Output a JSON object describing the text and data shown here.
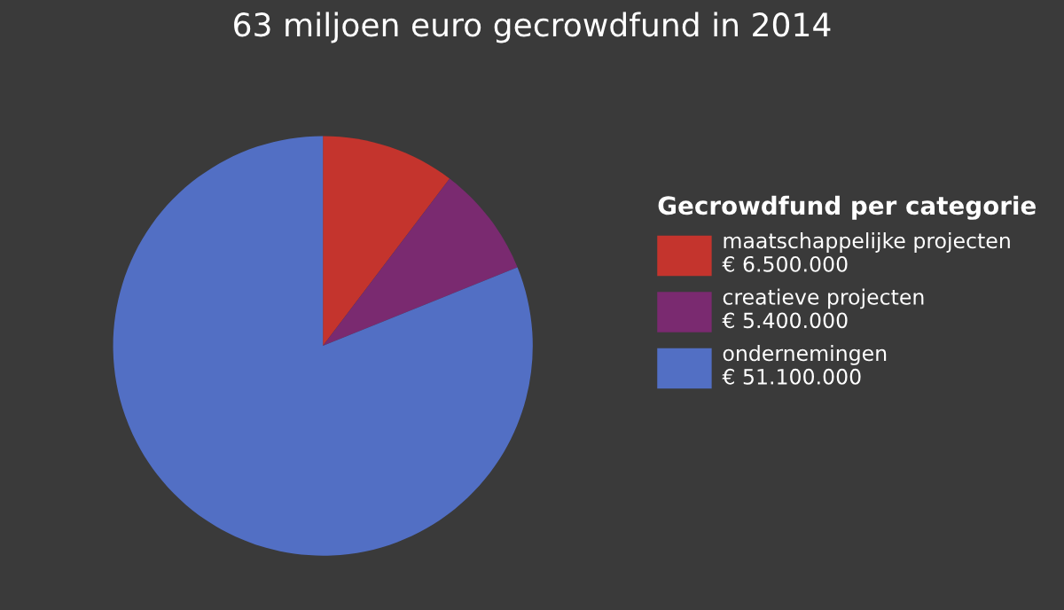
{
  "chart_data": {
    "type": "pie",
    "title": "63 miljoen euro gecrowdfund in 2014",
    "legend_title": "Gecrowdfund per categorie",
    "legend": "right",
    "categories": [
      "maatschappelijke projecten",
      "creatieve projecten",
      "ondernemingen"
    ],
    "values": [
      6500000,
      5400000,
      51100000
    ],
    "value_labels": [
      "€ 6.500.000",
      "€ 5.400.000",
      "€ 51.100.000"
    ],
    "colors": [
      "#c4342d",
      "#7a2a70",
      "#526fc4"
    ]
  }
}
